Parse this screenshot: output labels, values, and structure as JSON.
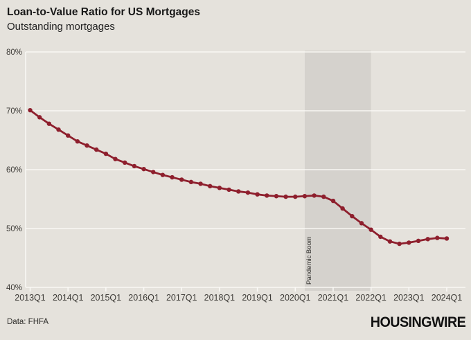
{
  "header": {
    "title": "Loan-to-Value Ratio for US Mortgages",
    "subtitle": "Outstanding mortgages"
  },
  "footer": {
    "source": "Data: FHFA",
    "brand": "HOUSINGWIRE"
  },
  "colors": {
    "background": "#e5e2dc",
    "line": "#8e1f2d",
    "grid": "#fbfaf7",
    "shade": "#d5d2cd",
    "axis_text": "#3c3a36",
    "annotation_text": "#2e2d2a"
  },
  "chart_data": {
    "type": "line",
    "title": "Loan-to-Value Ratio for US Mortgages",
    "subtitle": "Outstanding mortgages",
    "xlabel": "",
    "ylabel": "",
    "ylim": [
      40,
      80
    ],
    "yticks": [
      40,
      50,
      60,
      70,
      80
    ],
    "ytick_suffix": "%",
    "grid": "horizontal",
    "legend": "none",
    "x": [
      "2013Q1",
      "2013Q2",
      "2013Q3",
      "2013Q4",
      "2014Q1",
      "2014Q2",
      "2014Q3",
      "2014Q4",
      "2015Q1",
      "2015Q2",
      "2015Q3",
      "2015Q4",
      "2016Q1",
      "2016Q2",
      "2016Q3",
      "2016Q4",
      "2017Q1",
      "2017Q2",
      "2017Q3",
      "2017Q4",
      "2018Q1",
      "2018Q2",
      "2018Q3",
      "2018Q4",
      "2019Q1",
      "2019Q2",
      "2019Q3",
      "2019Q4",
      "2020Q1",
      "2020Q2",
      "2020Q3",
      "2020Q4",
      "2021Q1",
      "2021Q2",
      "2021Q3",
      "2021Q4",
      "2022Q1",
      "2022Q2",
      "2022Q3",
      "2022Q4",
      "2023Q1",
      "2023Q2",
      "2023Q3",
      "2023Q4",
      "2024Q1"
    ],
    "series": [
      {
        "name": "Loan-to-value ratio, outstanding mortgages (%)",
        "values": [
          70.1,
          68.9,
          67.8,
          66.8,
          65.8,
          64.8,
          64.1,
          63.4,
          62.7,
          61.8,
          61.2,
          60.6,
          60.1,
          59.6,
          59.1,
          58.7,
          58.3,
          57.9,
          57.6,
          57.2,
          56.9,
          56.6,
          56.3,
          56.1,
          55.8,
          55.6,
          55.5,
          55.4,
          55.4,
          55.5,
          55.6,
          55.4,
          54.7,
          53.4,
          52.1,
          50.9,
          49.8,
          48.6,
          47.8,
          47.4,
          47.6,
          47.9,
          48.2,
          48.4,
          48.3
        ]
      }
    ],
    "xtick_every": 4,
    "annotation": {
      "label": "Pandemic Boom",
      "start": "2020Q2",
      "end": "2022Q1"
    }
  }
}
